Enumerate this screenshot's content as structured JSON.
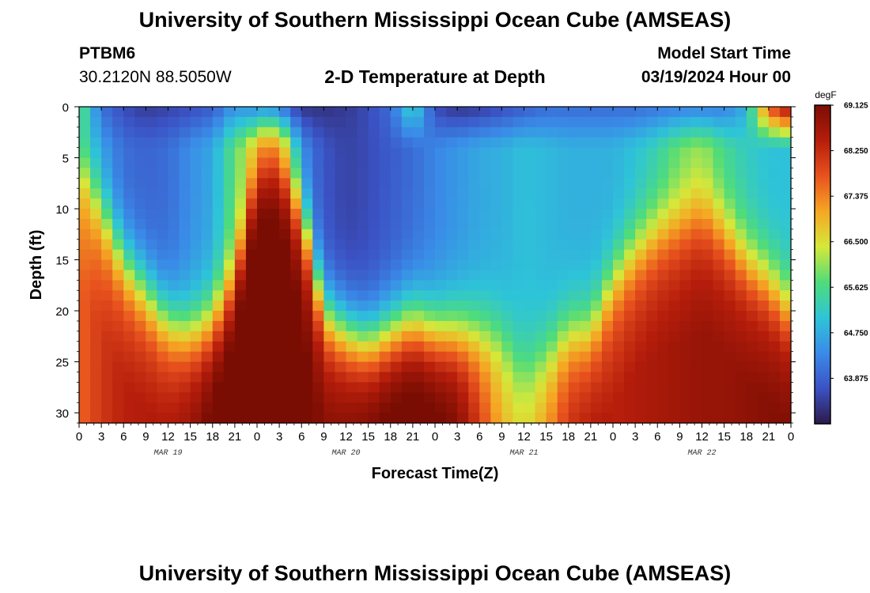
{
  "header": {
    "title": "University of Southern Mississippi Ocean Cube (AMSEAS)",
    "station": "PTBM6",
    "coords": "30.2120N  88.5050W",
    "plot_title": "2-D Temperature at Depth",
    "model_start_label": "Model Start Time",
    "model_start_value": "03/19/2024 Hour 00"
  },
  "footer": {
    "title": "University of Southern Mississippi Ocean Cube (AMSEAS)"
  },
  "chart_data": {
    "type": "heatmap",
    "title": "2-D Temperature at Depth",
    "xlabel": "Forecast Time(Z)",
    "ylabel": "Depth (ft)",
    "x_ticks": [
      "0",
      "3",
      "6",
      "9",
      "12",
      "15",
      "18",
      "21",
      "0",
      "3",
      "6",
      "9",
      "12",
      "15",
      "18",
      "21",
      "0",
      "3",
      "6",
      "9",
      "12",
      "15",
      "18",
      "21",
      "0",
      "3",
      "6",
      "9",
      "12",
      "15",
      "18",
      "21",
      "0"
    ],
    "x_range_hours": [
      0,
      96
    ],
    "date_labels": [
      {
        "label": "MAR 19",
        "hour": 12
      },
      {
        "label": "MAR 20",
        "hour": 36
      },
      {
        "label": "MAR 21",
        "hour": 60
      },
      {
        "label": "MAR 22",
        "hour": 84
      }
    ],
    "y_ticks": [
      "0",
      "5",
      "10",
      "15",
      "20",
      "25",
      "30"
    ],
    "y_range_ft": [
      0,
      31
    ],
    "colorbar": {
      "unit": "degF",
      "min": 63.0,
      "max": 69.125,
      "tick_labels": [
        "69.125",
        "68.250",
        "67.375",
        "66.500",
        "65.625",
        "64.750",
        "63.875"
      ],
      "tick_values": [
        69.125,
        68.25,
        67.375,
        66.5,
        65.625,
        64.75,
        63.875
      ],
      "colors": [
        "#2c1a4a",
        "#3b52c4",
        "#3a8be8",
        "#2ec4d8",
        "#4fdc7a",
        "#d6e83a",
        "#f5a623",
        "#e8521e",
        "#b51d0b",
        "#7a0d03"
      ]
    },
    "columns_hours": [
      0,
      3,
      6,
      9,
      12,
      15,
      18,
      21,
      24,
      27,
      30,
      33,
      36,
      39,
      42,
      45,
      48,
      51,
      54,
      57,
      60,
      63,
      66,
      69,
      72,
      75,
      78,
      81,
      84,
      87,
      90,
      93,
      96
    ],
    "thermocline_depth_ft": [
      5,
      10,
      15,
      18,
      21,
      22,
      21,
      17,
      6,
      5,
      10,
      20,
      22,
      23,
      22,
      21,
      22,
      22,
      22,
      22,
      25,
      24,
      22,
      22,
      17,
      14,
      12,
      11,
      10,
      12,
      15,
      17,
      20
    ],
    "deep_temp_degF": [
      67.0,
      67.5,
      67.8,
      67.9,
      68.0,
      68.3,
      68.8,
      69.1,
      69.1,
      69.0,
      68.6,
      68.4,
      68.5,
      68.7,
      68.9,
      69.0,
      68.9,
      68.6,
      67.6,
      66.5,
      66.2,
      66.8,
      67.7,
      68.0,
      67.8,
      67.9,
      68.0,
      68.1,
      68.2,
      68.2,
      68.3,
      68.4,
      68.5
    ],
    "mid_temp_degF": [
      65.2,
      64.5,
      64.0,
      63.9,
      64.0,
      64.4,
      64.7,
      65.8,
      66.5,
      66.3,
      64.3,
      63.7,
      63.5,
      63.6,
      63.8,
      64.0,
      64.3,
      64.5,
      64.7,
      64.8,
      65.0,
      64.9,
      64.8,
      64.8,
      64.8,
      65.0,
      65.3,
      65.8,
      66.0,
      65.5,
      65.2,
      65.0,
      65.0
    ],
    "surface_temp_degF": [
      65.8,
      64.0,
      63.6,
      63.4,
      63.5,
      63.6,
      63.8,
      64.5,
      64.2,
      63.8,
      63.3,
      63.3,
      63.4,
      63.6,
      64.0,
      65.4,
      63.6,
      63.3,
      63.4,
      63.6,
      63.8,
      64.0,
      64.0,
      64.0,
      64.0,
      64.0,
      64.1,
      64.2,
      64.2,
      64.2,
      64.8,
      67.8,
      68.9
    ]
  }
}
